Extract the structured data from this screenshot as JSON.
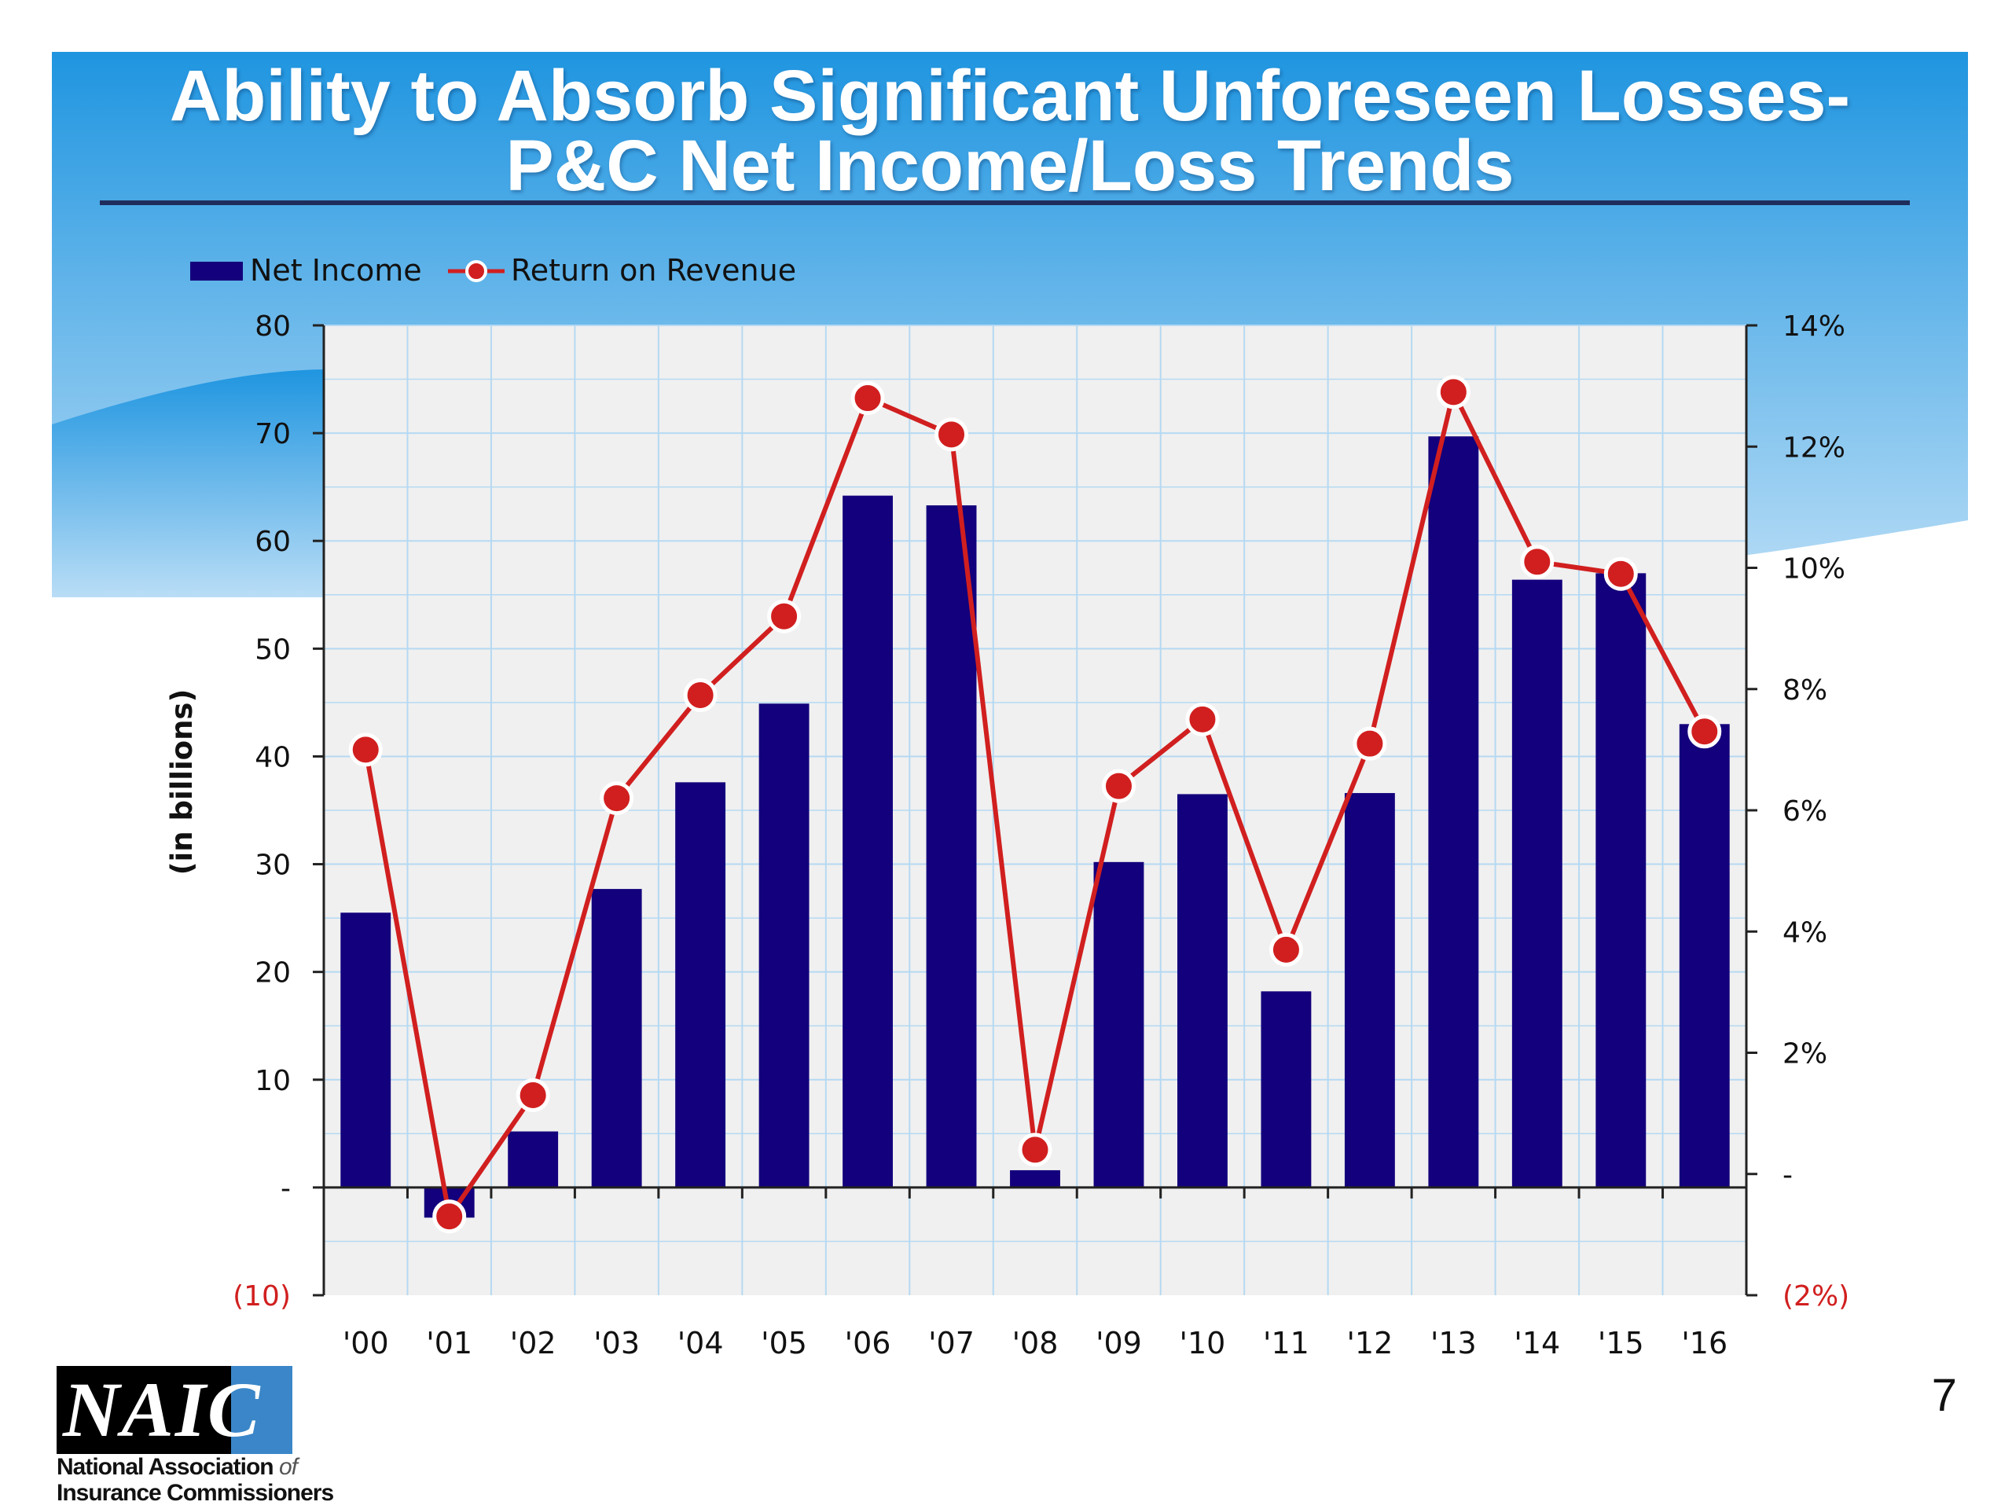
{
  "slide": {
    "title_line_1": "Ability to Absorb Significant Unforeseen Losses-",
    "title_line_2": "P&C Net Income/Loss Trends",
    "page_number": "7",
    "colors": {
      "banner_top": "#1f95e0",
      "banner_bottom": "#b9ddf6",
      "title_text": "#ffffff",
      "title_rule": "#1f2d5c"
    }
  },
  "logo": {
    "wordmark": "NAIC",
    "line_1": "National Association",
    "line_1_of": "of",
    "line_2": "Insurance Commissioners"
  },
  "chart_data": {
    "type": "bar",
    "categories": [
      "'00",
      "'01",
      "'02",
      "'03",
      "'04",
      "'05",
      "'06",
      "'07",
      "'08",
      "'09",
      "'10",
      "'11",
      "'12",
      "'13",
      "'14",
      "'15",
      "'16"
    ],
    "series": [
      {
        "name": "Net Income",
        "type": "bar",
        "axis": "left",
        "color": "#13007c",
        "values": [
          25.5,
          -2.8,
          5.2,
          27.7,
          37.6,
          44.9,
          64.2,
          63.3,
          1.6,
          30.2,
          36.5,
          18.2,
          36.6,
          69.7,
          56.4,
          57.0,
          43.0
        ]
      },
      {
        "name": "Return on Revenue",
        "type": "line",
        "axis": "right",
        "color": "#d11f1f",
        "marker": "circle",
        "values": [
          7.0,
          -0.7,
          1.3,
          6.2,
          7.9,
          9.2,
          12.8,
          12.2,
          0.4,
          6.4,
          7.5,
          3.7,
          7.1,
          12.9,
          10.1,
          9.9,
          7.3
        ]
      }
    ],
    "ylabel": "(in billions)",
    "ylim": [
      -10,
      80
    ],
    "y_ticks": [
      80,
      70,
      60,
      50,
      40,
      30,
      20,
      10,
      0,
      -10
    ],
    "y_tick_labels": [
      "80",
      "70",
      "60",
      "50",
      "40",
      "30",
      "20",
      "10",
      "-",
      "(10)"
    ],
    "y2lim": [
      -2,
      14
    ],
    "y2_ticks": [
      14,
      12,
      10,
      8,
      6,
      4,
      2,
      0,
      -2
    ],
    "y2_tick_labels": [
      "14%",
      "12%",
      "10%",
      "8%",
      "6%",
      "4%",
      "2%",
      "-",
      "(2%)"
    ],
    "negative_label_color": "#d11f1f",
    "legend_position": "top-left",
    "grid": true,
    "plot_background": "#f0f0f0",
    "grid_color": "#b5d9f2"
  }
}
